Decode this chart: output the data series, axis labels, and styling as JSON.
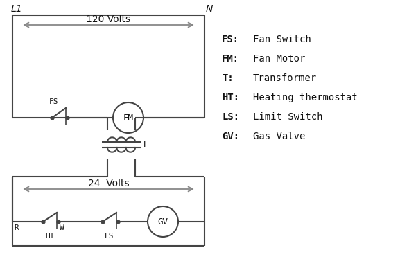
{
  "background_color": "#ffffff",
  "line_color": "#444444",
  "arrow_color": "#888888",
  "text_color": "#111111",
  "legend_items": [
    [
      "FS:",
      "Fan Switch"
    ],
    [
      "FM:",
      "Fan Motor"
    ],
    [
      "T:",
      "Transformer"
    ],
    [
      "HT:",
      "Heating thermostat"
    ],
    [
      "LS:",
      "Limit Switch"
    ],
    [
      "GV:",
      "Gas Valve"
    ]
  ],
  "label_L1": "L1",
  "label_N": "N",
  "label_120V": "120 Volts",
  "label_24V": "24  Volts",
  "label_T": "T",
  "label_FS": "FS",
  "label_FM": "FM",
  "label_R": "R",
  "label_W": "W",
  "label_HT": "HT",
  "label_LS": "LS",
  "label_GV": "GV"
}
